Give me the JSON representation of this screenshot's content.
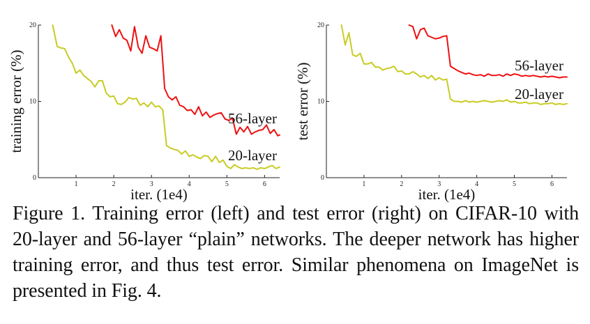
{
  "figure": {
    "caption": "Figure 1. Training error (left) and test error (right) on CIFAR-10 with 20-layer and 56-layer “plain” networks. The deeper network has higher training error, and thus test error. Similar phenomena on ImageNet is presented in Fig. 4."
  },
  "colors": {
    "red": "#ee1111",
    "olive": "#c8cc22",
    "axis": "#222222"
  },
  "chart_data": [
    {
      "type": "line",
      "ylabel": "training error (%)",
      "xlabel": "iter. (1e4)",
      "xlim": [
        0,
        6.4
      ],
      "ylim": [
        0,
        20
      ],
      "xticks": [
        0,
        1,
        2,
        3,
        4,
        5,
        6
      ],
      "yticks": [
        0,
        10,
        20
      ],
      "series": [
        {
          "name": "56-layer",
          "color": "red",
          "x": [
            1.95,
            2.05,
            2.15,
            2.25,
            2.35,
            2.45,
            2.55,
            2.65,
            2.75,
            2.85,
            2.95,
            3.05,
            3.15,
            3.25,
            3.35,
            3.45,
            3.55,
            3.65,
            3.75,
            3.85,
            3.95,
            4.05,
            4.15,
            4.25,
            4.35,
            4.45,
            4.55,
            4.65,
            4.75,
            4.85,
            4.95,
            5.05,
            5.15,
            5.25,
            5.35,
            5.45,
            5.55,
            5.65,
            5.75,
            5.85,
            5.95,
            6.05,
            6.15,
            6.25,
            6.35,
            6.4
          ],
          "values": [
            20.0,
            18.5,
            19.4,
            18.3,
            18.0,
            16.6,
            19.8,
            17.1,
            16.3,
            18.6,
            17.1,
            16.9,
            16.6,
            18.6,
            11.7,
            10.6,
            10.2,
            10.6,
            9.5,
            9.3,
            8.8,
            8.9,
            8.3,
            9.3,
            8.1,
            8.6,
            7.9,
            8.2,
            8.4,
            8.5,
            7.7,
            7.5,
            7.8,
            5.7,
            6.6,
            6.0,
            6.7,
            5.7,
            6.0,
            6.2,
            6.3,
            6.9,
            5.8,
            6.3,
            5.5,
            5.6
          ]
        },
        {
          "name": "20-layer",
          "color": "olive",
          "x": [
            0.38,
            0.5,
            0.6,
            0.7,
            0.8,
            0.9,
            1.0,
            1.1,
            1.2,
            1.3,
            1.4,
            1.5,
            1.6,
            1.7,
            1.8,
            1.9,
            2.0,
            2.1,
            2.2,
            2.3,
            2.4,
            2.5,
            2.6,
            2.7,
            2.8,
            2.9,
            3.0,
            3.1,
            3.2,
            3.3,
            3.4,
            3.5,
            3.6,
            3.7,
            3.8,
            3.9,
            4.0,
            4.1,
            4.2,
            4.3,
            4.4,
            4.5,
            4.6,
            4.7,
            4.8,
            4.9,
            5.0,
            5.1,
            5.2,
            5.3,
            5.4,
            5.5,
            5.6,
            5.7,
            5.8,
            5.9,
            6.0,
            6.1,
            6.2,
            6.3,
            6.4
          ],
          "values": [
            20.0,
            17.2,
            17.0,
            16.9,
            15.8,
            15.0,
            13.7,
            14.1,
            13.4,
            13.0,
            12.6,
            11.9,
            12.7,
            12.7,
            11.1,
            10.6,
            10.7,
            9.7,
            9.6,
            9.9,
            10.5,
            10.3,
            10.4,
            9.5,
            9.8,
            9.3,
            9.9,
            9.3,
            9.4,
            8.9,
            4.2,
            3.9,
            3.7,
            3.6,
            3.1,
            3.5,
            2.8,
            3.0,
            2.7,
            2.5,
            2.9,
            2.8,
            2.1,
            2.8,
            2.0,
            2.3,
            1.5,
            1.2,
            1.7,
            1.4,
            1.2,
            1.3,
            1.2,
            1.3,
            1.1,
            1.3,
            1.2,
            1.4,
            1.6,
            1.2,
            1.4
          ]
        }
      ]
    },
    {
      "type": "line",
      "ylabel": "test error (%)",
      "xlabel": "iter. (1e4)",
      "xlim": [
        0,
        6.4
      ],
      "ylim": [
        0,
        20
      ],
      "xticks": [
        0,
        1,
        2,
        3,
        4,
        5,
        6
      ],
      "yticks": [
        0,
        10,
        20
      ],
      "series": [
        {
          "name": "56-layer",
          "color": "red",
          "x": [
            2.2,
            2.3,
            2.4,
            2.5,
            2.6,
            2.7,
            2.8,
            2.9,
            3.0,
            3.1,
            3.2,
            3.3,
            3.4,
            3.5,
            3.6,
            3.7,
            3.8,
            3.9,
            4.0,
            4.1,
            4.2,
            4.3,
            4.4,
            4.5,
            4.6,
            4.7,
            4.8,
            4.9,
            5.0,
            5.1,
            5.2,
            5.3,
            5.4,
            5.5,
            5.6,
            5.7,
            5.8,
            5.9,
            6.0,
            6.1,
            6.2,
            6.3,
            6.4
          ],
          "values": [
            20.0,
            19.8,
            18.2,
            19.4,
            19.6,
            18.6,
            18.4,
            18.2,
            18.3,
            18.5,
            18.6,
            14.6,
            14.3,
            14.0,
            13.8,
            13.6,
            13.7,
            13.5,
            13.4,
            13.5,
            13.3,
            13.6,
            13.4,
            13.4,
            13.5,
            13.3,
            13.6,
            13.4,
            13.6,
            13.5,
            13.3,
            13.4,
            13.3,
            13.4,
            13.3,
            13.2,
            13.3,
            13.2,
            13.3,
            13.2,
            13.1,
            13.2,
            13.2
          ]
        },
        {
          "name": "20-layer",
          "color": "olive",
          "x": [
            0.4,
            0.5,
            0.6,
            0.7,
            0.8,
            0.9,
            1.0,
            1.1,
            1.2,
            1.3,
            1.4,
            1.5,
            1.6,
            1.7,
            1.8,
            1.9,
            2.0,
            2.1,
            2.2,
            2.3,
            2.4,
            2.5,
            2.6,
            2.7,
            2.8,
            2.9,
            3.0,
            3.1,
            3.2,
            3.3,
            3.4,
            3.5,
            3.6,
            3.7,
            3.8,
            3.9,
            4.0,
            4.1,
            4.2,
            4.3,
            4.4,
            4.5,
            4.6,
            4.7,
            4.8,
            4.9,
            5.0,
            5.1,
            5.2,
            5.3,
            5.4,
            5.5,
            5.6,
            5.7,
            5.8,
            5.9,
            6.0,
            6.1,
            6.2,
            6.3,
            6.4
          ],
          "values": [
            20.0,
            17.4,
            19.0,
            16.1,
            15.9,
            16.3,
            14.9,
            14.9,
            15.1,
            14.5,
            14.5,
            14.1,
            14.3,
            14.4,
            14.6,
            13.9,
            14.0,
            13.6,
            13.6,
            13.9,
            13.6,
            13.2,
            13.4,
            13.0,
            13.4,
            12.8,
            13.1,
            12.8,
            12.9,
            10.3,
            10.0,
            10.0,
            9.9,
            10.1,
            9.9,
            10.0,
            9.9,
            10.0,
            10.1,
            10.0,
            9.9,
            10.0,
            10.1,
            10.0,
            10.2,
            9.9,
            10.0,
            9.8,
            9.8,
            9.9,
            9.7,
            9.8,
            9.8,
            9.6,
            9.7,
            9.7,
            9.8,
            9.6,
            9.7,
            9.6,
            9.7
          ]
        }
      ]
    }
  ]
}
